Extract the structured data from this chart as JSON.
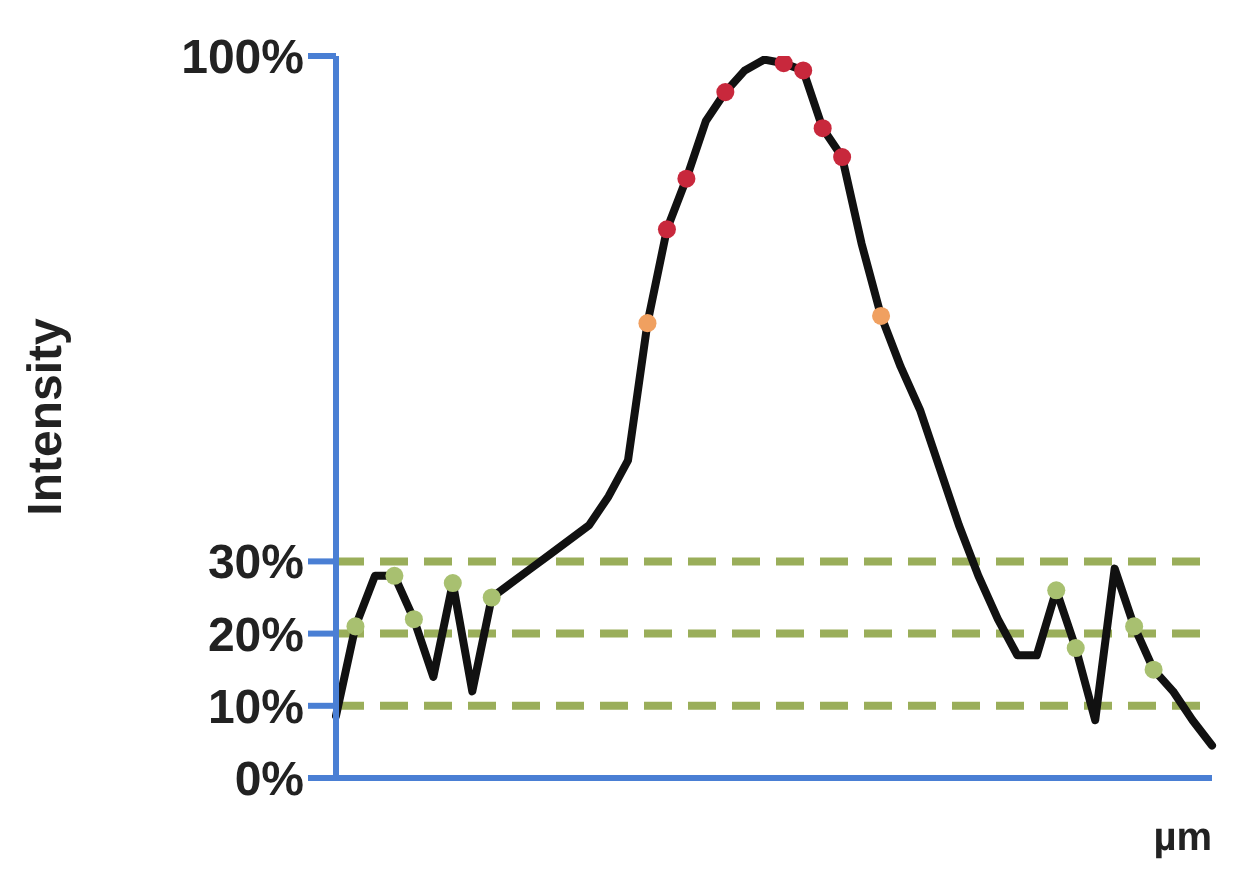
{
  "chart_data": {
    "type": "line",
    "ylabel": "Intensity",
    "xlabel": "µm",
    "categories": [
      null,
      null,
      null,
      null,
      null,
      null,
      null,
      null,
      null,
      null,
      null,
      null,
      null,
      null,
      null,
      null,
      null,
      null,
      null,
      null,
      null,
      null,
      null,
      null,
      null,
      null,
      null,
      null,
      null,
      null,
      null,
      null,
      null,
      null,
      null,
      null,
      null,
      null,
      null,
      null,
      null,
      null,
      null,
      null,
      null,
      null
    ],
    "ylim": [
      0,
      100
    ],
    "yticks": [
      {
        "value": 0,
        "label": "0%"
      },
      {
        "value": 10,
        "label": "10%"
      },
      {
        "value": 20,
        "label": "20%"
      },
      {
        "value": 30,
        "label": "30%"
      },
      {
        "value": 100,
        "label": "100%"
      }
    ],
    "tick_labels": "y",
    "grid": false,
    "legend": false,
    "ref_lines": [
      {
        "axis": "y",
        "value": 10,
        "color": "#9aae5a",
        "line_style": "dashed"
      },
      {
        "axis": "y",
        "value": 20,
        "color": "#9aae5a",
        "line_style": "dashed"
      },
      {
        "axis": "y",
        "value": 30,
        "color": "#9aae5a",
        "line_style": "dashed"
      }
    ],
    "series": [
      {
        "type": "line",
        "color": "#111111",
        "marker": "none",
        "line_style": "solid",
        "values": [
          8.6,
          21,
          28,
          28,
          22,
          14,
          27,
          12,
          25,
          27,
          29,
          31,
          33,
          35,
          39,
          44,
          63,
          76,
          83,
          91,
          95,
          98,
          99.5,
          99,
          98,
          90,
          86,
          74,
          64,
          57,
          51,
          43,
          35,
          28,
          22,
          17,
          17,
          26,
          18,
          8,
          29,
          21,
          15,
          12,
          8,
          4.5
        ]
      },
      {
        "type": "scatter",
        "color": "#a8c070",
        "marker": "circle",
        "values": [
          null,
          21,
          null,
          28,
          22,
          null,
          27,
          null,
          25,
          null,
          null,
          null,
          null,
          null,
          null,
          null,
          null,
          null,
          null,
          null,
          null,
          null,
          null,
          null,
          null,
          null,
          null,
          null,
          null,
          null,
          null,
          null,
          null,
          null,
          null,
          null,
          null,
          26,
          18,
          null,
          null,
          21,
          15,
          null,
          null,
          null
        ]
      },
      {
        "type": "scatter",
        "color": "#c8283c",
        "marker": "circle",
        "values": [
          null,
          null,
          null,
          null,
          null,
          null,
          null,
          null,
          null,
          null,
          null,
          null,
          null,
          null,
          null,
          null,
          null,
          76,
          83,
          null,
          95,
          null,
          null,
          99,
          98,
          90,
          86,
          null,
          null,
          null,
          null,
          null,
          null,
          null,
          null,
          null,
          null,
          null,
          null,
          null,
          null,
          null,
          null,
          null,
          null,
          null
        ]
      },
      {
        "type": "scatter",
        "color": "#f0a060",
        "marker": "circle",
        "values": [
          null,
          null,
          null,
          null,
          null,
          null,
          null,
          null,
          null,
          null,
          null,
          null,
          null,
          null,
          null,
          null,
          63,
          null,
          null,
          null,
          null,
          null,
          null,
          null,
          null,
          null,
          null,
          null,
          64,
          null,
          null,
          null,
          null,
          null,
          null,
          null,
          null,
          null,
          null,
          null,
          null,
          null,
          null,
          null,
          null,
          null
        ]
      }
    ]
  }
}
